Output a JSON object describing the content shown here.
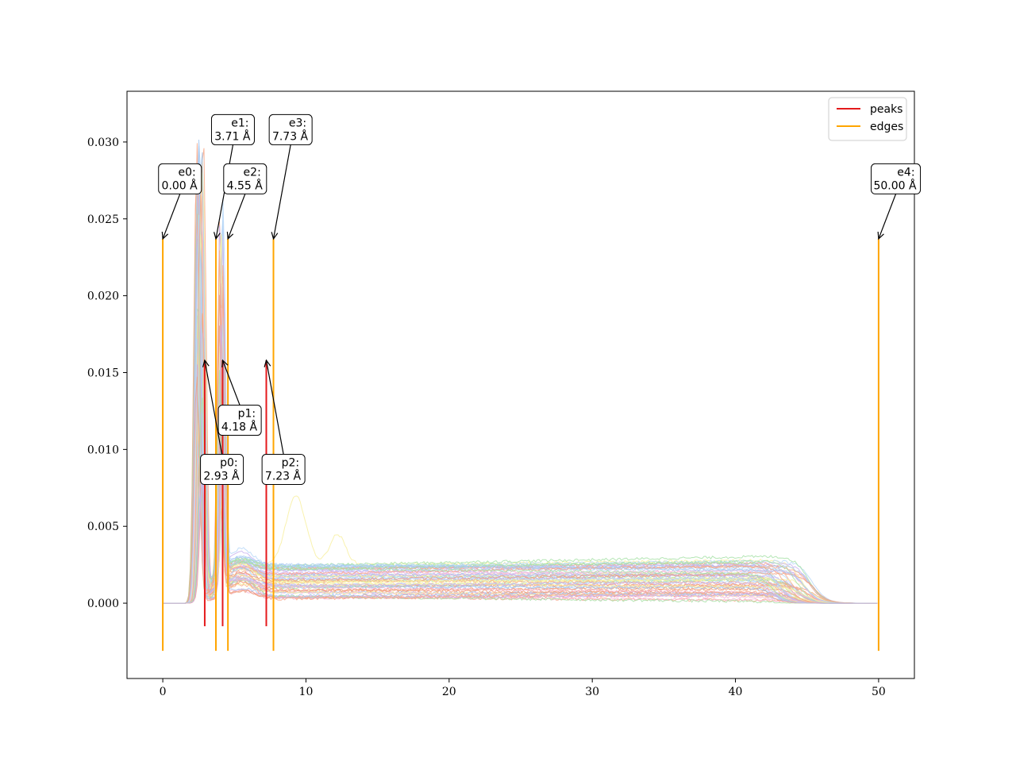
{
  "chart_data": {
    "type": "line",
    "title": "",
    "xlabel": "",
    "ylabel": "",
    "xlim": [
      -2.5,
      52.5
    ],
    "ylim": [
      -0.0049,
      0.0333
    ],
    "x_ticks": [
      0,
      10,
      20,
      30,
      40,
      50
    ],
    "x_tick_labels": [
      "0",
      "10",
      "20",
      "30",
      "40",
      "50"
    ],
    "y_ticks": [
      0.0,
      0.005,
      0.01,
      0.015,
      0.02,
      0.025,
      0.03
    ],
    "y_tick_labels": [
      "0.000",
      "0.005",
      "0.010",
      "0.015",
      "0.020",
      "0.025",
      "0.030"
    ],
    "grid": false,
    "legend": {
      "position": "top-right",
      "entries": [
        {
          "label": "peaks",
          "color": "#e41a1c"
        },
        {
          "label": "edges",
          "color": "#ffa500"
        }
      ]
    },
    "background_series": {
      "description_count": 60,
      "palette": [
        "#a6c8f0",
        "#f7a98a",
        "#a8e2a8",
        "#c9b3f0",
        "#f5b8d8",
        "#f8f0a0",
        "#b8d8f8",
        "#f0a080"
      ],
      "x_range": [
        0,
        50
      ],
      "main_peak_x": 2.6,
      "main_peak_y_range": [
        0.018,
        0.0316
      ],
      "plateau_y_range": [
        0.0003,
        0.0025
      ],
      "plateau_end_x": 45.5
    },
    "peaks": [
      {
        "id": "p0",
        "x": 2.93,
        "label": "2.93 Å",
        "y_bottom": -0.0015,
        "y_top": 0.0158
      },
      {
        "id": "p1",
        "x": 4.18,
        "label": "4.18 Å",
        "y_bottom": -0.0015,
        "y_top": 0.0158
      },
      {
        "id": "p2",
        "x": 7.23,
        "label": "7.23 Å",
        "y_bottom": -0.0015,
        "y_top": 0.0158
      }
    ],
    "edges": [
      {
        "id": "e0",
        "x": 0.0,
        "label": "0.00 Å",
        "y_bottom": -0.0031,
        "y_top": 0.0237
      },
      {
        "id": "e1",
        "x": 3.71,
        "label": "3.71 Å",
        "y_bottom": -0.0031,
        "y_top": 0.0237
      },
      {
        "id": "e2",
        "x": 4.55,
        "label": "4.55 Å",
        "y_bottom": -0.0031,
        "y_top": 0.0237
      },
      {
        "id": "e3",
        "x": 7.73,
        "label": "7.73 Å",
        "y_bottom": -0.0031,
        "y_top": 0.0237
      },
      {
        "id": "e4",
        "x": 50.0,
        "label": "50.00 Å",
        "y_bottom": -0.0031,
        "y_top": 0.0237
      }
    ],
    "annotations": [
      {
        "name": "e0",
        "text1": "e0:",
        "text2": "0.00 Å",
        "target_x": 0.0,
        "target_y": 0.0237,
        "box_x": 1.2,
        "box_y": 0.0276
      },
      {
        "name": "e1",
        "text1": "e1:",
        "text2": "3.71 Å",
        "target_x": 3.71,
        "target_y": 0.0237,
        "box_x": 4.9,
        "box_y": 0.0308
      },
      {
        "name": "e2",
        "text1": "e2:",
        "text2": "4.55 Å",
        "target_x": 4.55,
        "target_y": 0.0237,
        "box_x": 5.75,
        "box_y": 0.0276
      },
      {
        "name": "e3",
        "text1": "e3:",
        "text2": "7.73 Å",
        "target_x": 7.73,
        "target_y": 0.0237,
        "box_x": 8.93,
        "box_y": 0.0308
      },
      {
        "name": "e4",
        "text1": "e4:",
        "text2": "50.00 Å",
        "target_x": 50.0,
        "target_y": 0.0237,
        "box_x": 51.2,
        "box_y": 0.0276
      },
      {
        "name": "p0",
        "text1": "p0:",
        "text2": "2.93 Å",
        "target_x": 2.93,
        "target_y": 0.0158,
        "box_x": 4.13,
        "box_y": 0.0087
      },
      {
        "name": "p1",
        "text1": "p1:",
        "text2": "4.18 Å",
        "target_x": 4.18,
        "target_y": 0.0158,
        "box_x": 5.38,
        "box_y": 0.0119
      },
      {
        "name": "p2",
        "text1": "p2:",
        "text2": "7.23 Å",
        "target_x": 7.23,
        "target_y": 0.0158,
        "box_x": 8.43,
        "box_y": 0.0087
      }
    ]
  }
}
